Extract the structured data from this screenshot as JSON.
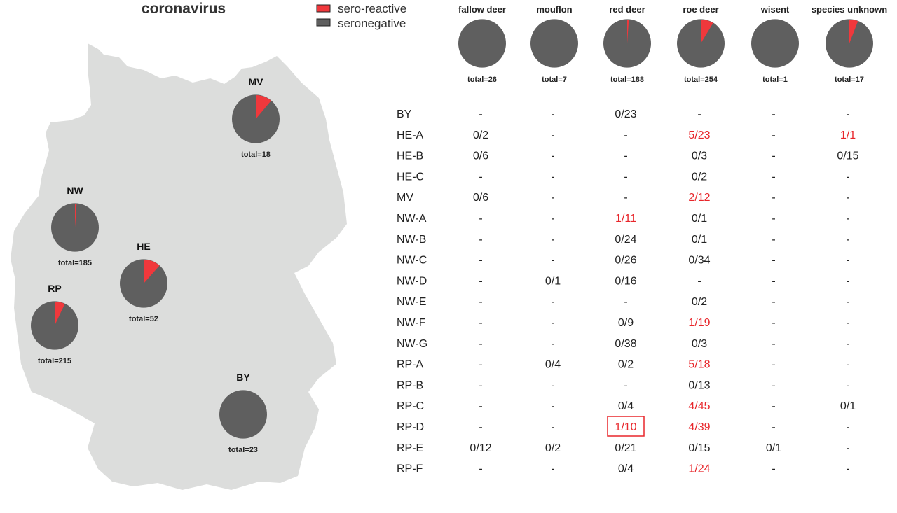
{
  "chart_data": {
    "type": "pie",
    "title": "coronavirus",
    "legend": {
      "placement": "top",
      "items": [
        {
          "label": "sero-reactive",
          "color": "#f0383c"
        },
        {
          "label": "seronegative",
          "color": "#5f5f5f"
        }
      ]
    },
    "region_pies": [
      {
        "region": "MV",
        "total_label": "total=18",
        "positive": 2,
        "total": 18
      },
      {
        "region": "NW",
        "total_label": "total=185",
        "positive": 2,
        "total": 185
      },
      {
        "region": "HE",
        "total_label": "total=52",
        "positive": 6,
        "total": 52
      },
      {
        "region": "RP",
        "total_label": "total=215",
        "positive": 15,
        "total": 215
      },
      {
        "region": "BY",
        "total_label": "total=23",
        "positive": 0,
        "total": 23
      }
    ],
    "species_pies": [
      {
        "species": "fallow deer",
        "total_label": "total=26",
        "positive": 0,
        "total": 26
      },
      {
        "species": "mouflon",
        "total_label": "total=7",
        "positive": 0,
        "total": 7
      },
      {
        "species": "red deer",
        "total_label": "total=188",
        "positive": 2,
        "total": 188
      },
      {
        "species": "roe deer",
        "total_label": "total=254",
        "positive": 22,
        "total": 254
      },
      {
        "species": "wisent",
        "total_label": "total=1",
        "positive": 0,
        "total": 1
      },
      {
        "species": "species unknown",
        "total_label": "total=17",
        "positive": 1,
        "total": 17
      }
    ],
    "table": {
      "columns": [
        "fallow deer",
        "mouflon",
        "red deer",
        "roe deer",
        "wisent",
        "species unknown"
      ],
      "rows": [
        {
          "label": "BY",
          "cells": [
            "-",
            "-",
            "0/23",
            "-",
            "-",
            "-"
          ]
        },
        {
          "label": "HE-A",
          "cells": [
            "0/2",
            "-",
            "-",
            "5/23",
            "-",
            "1/1"
          ]
        },
        {
          "label": "HE-B",
          "cells": [
            "0/6",
            "-",
            "-",
            "0/3",
            "-",
            "0/15"
          ]
        },
        {
          "label": "HE-C",
          "cells": [
            "-",
            "-",
            "-",
            "0/2",
            "-",
            "-"
          ]
        },
        {
          "label": "MV",
          "cells": [
            "0/6",
            "-",
            "-",
            "2/12",
            "-",
            "-"
          ]
        },
        {
          "label": "NW-A",
          "cells": [
            "-",
            "-",
            "1/11",
            "0/1",
            "-",
            "-"
          ]
        },
        {
          "label": "NW-B",
          "cells": [
            "-",
            "-",
            "0/24",
            "0/1",
            "-",
            "-"
          ]
        },
        {
          "label": "NW-C",
          "cells": [
            "-",
            "-",
            "0/26",
            "0/34",
            "-",
            "-"
          ]
        },
        {
          "label": "NW-D",
          "cells": [
            "-",
            "0/1",
            "0/16",
            "-",
            "-",
            "-"
          ]
        },
        {
          "label": "NW-E",
          "cells": [
            "-",
            "-",
            "-",
            "0/2",
            "-",
            "-"
          ]
        },
        {
          "label": "NW-F",
          "cells": [
            "-",
            "-",
            "0/9",
            "1/19",
            "-",
            "-"
          ]
        },
        {
          "label": "NW-G",
          "cells": [
            "-",
            "-",
            "0/38",
            "0/3",
            "-",
            "-"
          ]
        },
        {
          "label": "RP-A",
          "cells": [
            "-",
            "0/4",
            "0/2",
            "5/18",
            "-",
            "-"
          ]
        },
        {
          "label": "RP-B",
          "cells": [
            "-",
            "-",
            "-",
            "0/13",
            "-",
            "-"
          ]
        },
        {
          "label": "RP-C",
          "cells": [
            "-",
            "-",
            "0/4",
            "4/45",
            "-",
            "0/1"
          ]
        },
        {
          "label": "RP-D",
          "cells": [
            "-",
            "-",
            "1/10",
            "4/39",
            "-",
            "-"
          ],
          "boxed_column": 2
        },
        {
          "label": "RP-E",
          "cells": [
            "0/12",
            "0/2",
            "0/21",
            "0/15",
            "0/1",
            "-"
          ]
        },
        {
          "label": "RP-F",
          "cells": [
            "-",
            "-",
            "0/4",
            "1/24",
            "-",
            "-"
          ]
        }
      ]
    },
    "colors": {
      "positive": "#f0383c",
      "negative": "#5f5f5f",
      "map": "#dcdddc",
      "positive_text": "#e8262b"
    }
  }
}
